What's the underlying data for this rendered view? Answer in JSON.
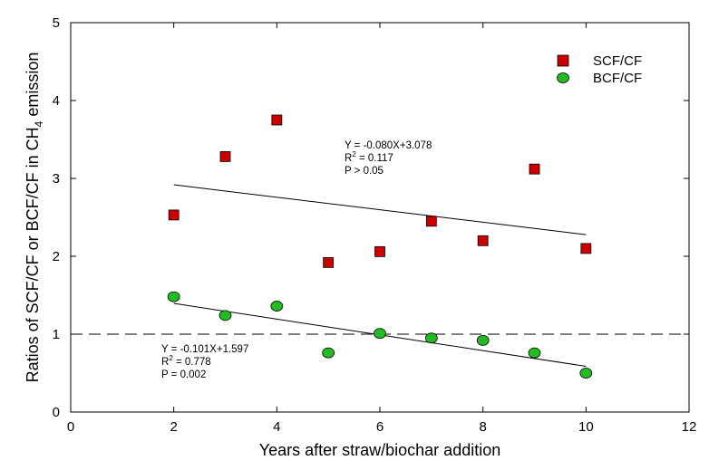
{
  "chart_data": {
    "type": "scatter",
    "title": "",
    "xlabel": "Years after straw/biochar addition",
    "ylabel": {
      "prefix": "Ratios of SCF/CF or BCF/CF in CH",
      "subscript": "4",
      "suffix": " emission"
    },
    "xlim": [
      0,
      12
    ],
    "ylim": [
      0,
      5
    ],
    "xticks": [
      0,
      2,
      4,
      6,
      8,
      10,
      12
    ],
    "yticks": [
      0,
      1,
      2,
      3,
      4,
      5
    ],
    "reference_line": {
      "y": 1,
      "style": "dashed"
    },
    "series": [
      {
        "name": "SCF/CF",
        "marker": "square",
        "color": "#cc0000",
        "x": [
          2,
          3,
          4,
          5,
          6,
          7,
          8,
          9,
          10
        ],
        "y": [
          2.53,
          3.28,
          3.75,
          1.92,
          2.06,
          2.45,
          2.2,
          3.12,
          2.1
        ],
        "fit": {
          "slope": -0.08,
          "intercept": 3.078,
          "x_range": [
            2,
            10
          ],
          "equation": "Y = -0.080X+3.078",
          "r2_prefix": "R",
          "r2_sup": "2",
          "r2_value": " = 0.117",
          "p_text": "P > 0.05"
        }
      },
      {
        "name": "BCF/CF",
        "marker": "circle",
        "color": "#22bb22",
        "x": [
          2,
          3,
          4,
          5,
          6,
          7,
          8,
          9,
          10
        ],
        "y": [
          1.48,
          1.24,
          1.36,
          0.76,
          1.01,
          0.95,
          0.92,
          0.76,
          0.5
        ],
        "fit": {
          "slope": -0.101,
          "intercept": 1.597,
          "x_range": [
            2,
            10
          ],
          "equation": "Y = -0.101X+1.597",
          "r2_prefix": "R",
          "r2_sup": "2",
          "r2_value": " = 0.778",
          "p_text": "P = 0.002"
        }
      }
    ],
    "legend": {
      "position": "top-right"
    }
  }
}
